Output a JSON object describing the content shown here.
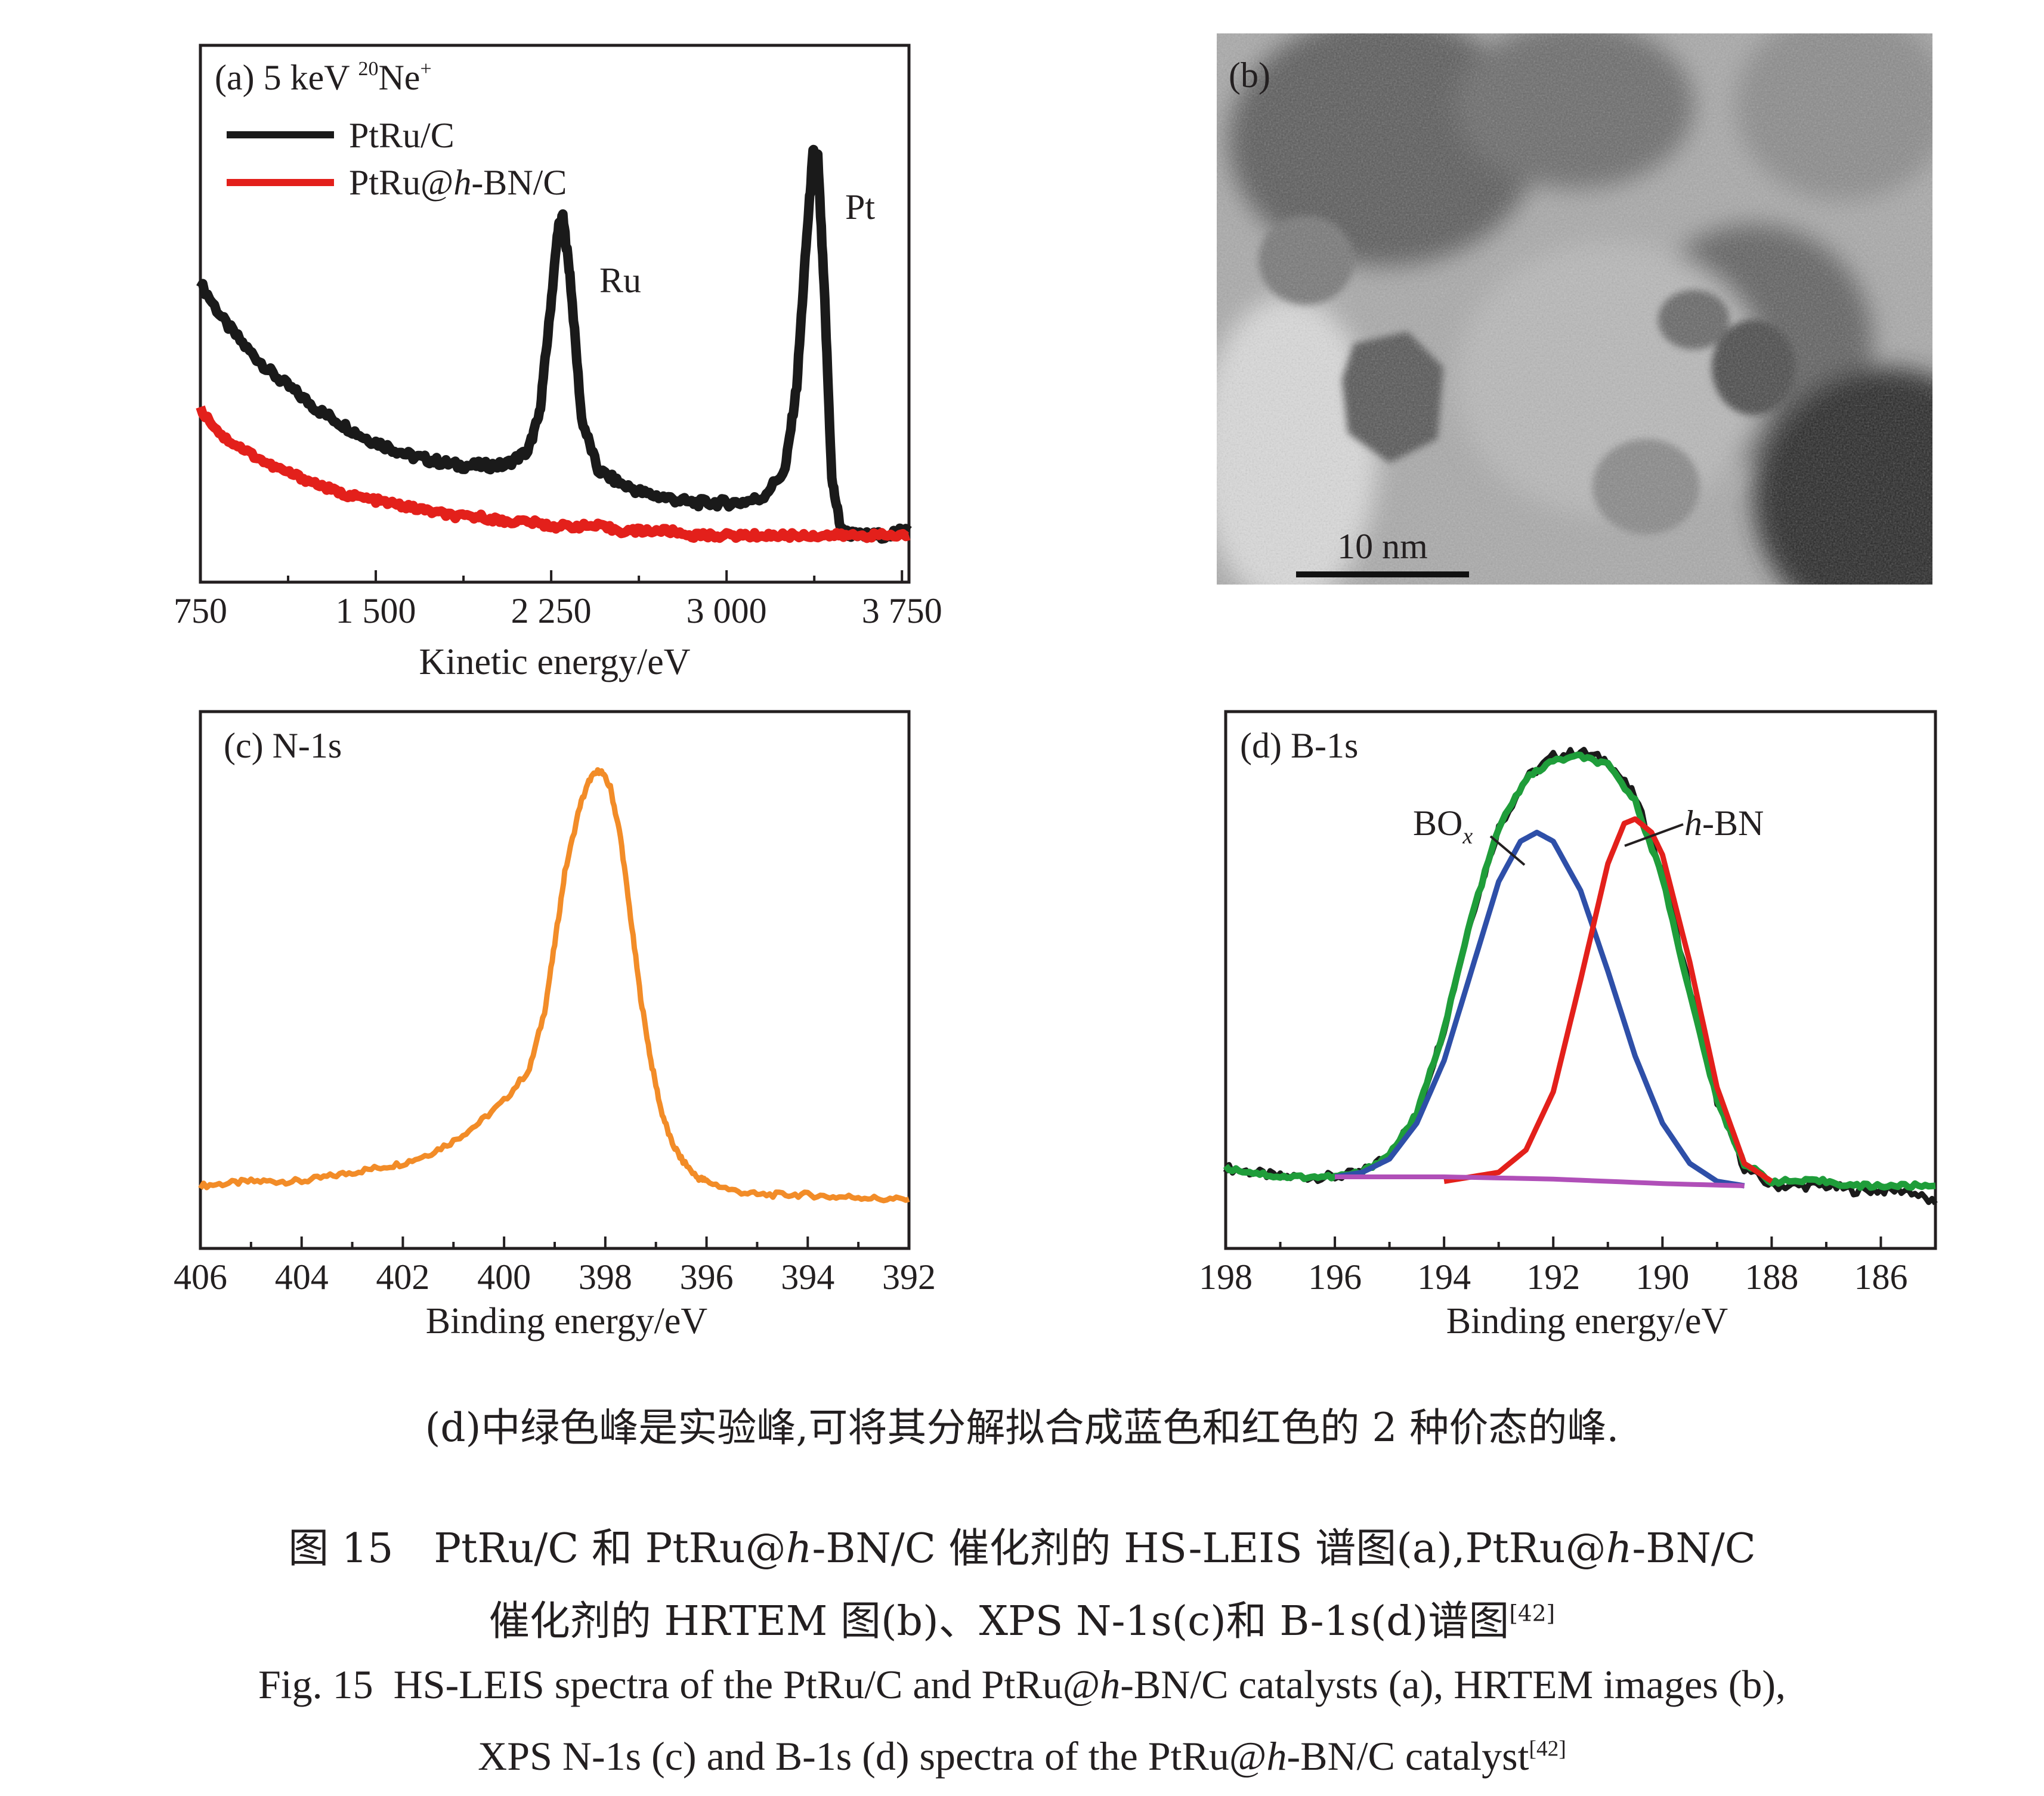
{
  "chart_data": [
    {
      "panel": "a",
      "type": "line",
      "title": "(a) 5 keV ²⁰Ne⁺",
      "xlabel": "Kinetic energy/eV",
      "ylabel": "",
      "xlim": [
        750,
        3780
      ],
      "ylim": [
        0,
        1.15
      ],
      "xticks": [
        750,
        1500,
        2250,
        3000,
        3750
      ],
      "xtick_labels": [
        "750",
        "1 500",
        "2 250",
        "3 000",
        "3 750"
      ],
      "legend": {
        "placement": "top-left"
      },
      "annotations": [
        {
          "text": "Ru",
          "x": 2340,
          "y": 0.68
        },
        {
          "text": "Pt",
          "x": 3380,
          "y": 0.84
        }
      ],
      "series": [
        {
          "name": "PtRu/C",
          "color": "#1a1a1a",
          "x": [
            750,
            850,
            950,
            1050,
            1150,
            1250,
            1350,
            1450,
            1550,
            1650,
            1750,
            1850,
            1950,
            2050,
            2150,
            2200,
            2240,
            2280,
            2300,
            2330,
            2380,
            2450,
            2550,
            2650,
            2750,
            2850,
            2950,
            3050,
            3150,
            3250,
            3300,
            3340,
            3370,
            3390,
            3420,
            3450,
            3490,
            3550,
            3650,
            3780
          ],
          "y": [
            0.64,
            0.56,
            0.5,
            0.45,
            0.41,
            0.37,
            0.34,
            0.31,
            0.29,
            0.27,
            0.26,
            0.25,
            0.25,
            0.25,
            0.28,
            0.36,
            0.55,
            0.76,
            0.78,
            0.66,
            0.35,
            0.24,
            0.21,
            0.19,
            0.18,
            0.17,
            0.17,
            0.17,
            0.18,
            0.24,
            0.42,
            0.72,
            0.92,
            0.91,
            0.6,
            0.22,
            0.11,
            0.1,
            0.1,
            0.11
          ]
        },
        {
          "name": "PtRu@h-BN/C",
          "color": "#e3201b",
          "x": [
            750,
            850,
            950,
            1050,
            1150,
            1250,
            1350,
            1450,
            1550,
            1650,
            1750,
            1850,
            1950,
            2050,
            2150,
            2250,
            2350,
            2450,
            2550,
            2650,
            2750,
            2850,
            2950,
            3050,
            3150,
            3250,
            3350,
            3450,
            3550,
            3650,
            3780
          ],
          "y": [
            0.37,
            0.31,
            0.28,
            0.25,
            0.23,
            0.21,
            0.19,
            0.18,
            0.17,
            0.16,
            0.15,
            0.14,
            0.14,
            0.13,
            0.13,
            0.12,
            0.12,
            0.12,
            0.11,
            0.11,
            0.11,
            0.1,
            0.1,
            0.1,
            0.1,
            0.1,
            0.1,
            0.1,
            0.1,
            0.1,
            0.1
          ]
        }
      ]
    },
    {
      "panel": "b",
      "type": "image",
      "title": "(b)",
      "scale_bar": "10 nm"
    },
    {
      "panel": "c",
      "type": "line",
      "title": "(c) N-1s",
      "xlabel": "Binding energy/eV",
      "ylabel": "",
      "xlim": [
        406,
        392
      ],
      "x_reversed": true,
      "ylim": [
        0,
        1.2
      ],
      "xticks": [
        406,
        404,
        402,
        400,
        398,
        396,
        394,
        392
      ],
      "xtick_labels": [
        "406",
        "404",
        "402",
        "400",
        "398",
        "396",
        "394",
        "392"
      ],
      "series": [
        {
          "name": "",
          "color": "#f28c28",
          "x": [
            406,
            405.5,
            405,
            404.5,
            404,
            403.5,
            403,
            402.5,
            402,
            401.5,
            401,
            400.5,
            400,
            399.5,
            399.2,
            399,
            398.8,
            398.5,
            398.3,
            398.1,
            397.9,
            397.7,
            397.5,
            397.3,
            397.1,
            396.9,
            396.7,
            396.5,
            396.2,
            396,
            395.5,
            395,
            394.5,
            394,
            393.5,
            393,
            392.5,
            392
          ],
          "y": [
            0.14,
            0.145,
            0.15,
            0.15,
            0.15,
            0.16,
            0.17,
            0.18,
            0.19,
            0.21,
            0.24,
            0.28,
            0.33,
            0.4,
            0.53,
            0.68,
            0.84,
            0.99,
            1.05,
            1.07,
            1.03,
            0.92,
            0.74,
            0.56,
            0.42,
            0.31,
            0.24,
            0.2,
            0.16,
            0.15,
            0.13,
            0.12,
            0.12,
            0.12,
            0.115,
            0.115,
            0.11,
            0.11
          ]
        }
      ]
    },
    {
      "panel": "d",
      "type": "line",
      "title": "(d) B-1s",
      "xlabel": "Binding energy/eV",
      "ylabel": "",
      "xlim": [
        198,
        185
      ],
      "x_reversed": true,
      "ylim": [
        0,
        1.2
      ],
      "xticks": [
        198,
        196,
        194,
        192,
        190,
        188,
        186
      ],
      "xtick_labels": [
        "198",
        "196",
        "194",
        "192",
        "190",
        "188",
        "186"
      ],
      "annotations": [
        {
          "text": "BOx",
          "series": "BOx component"
        },
        {
          "text": "h-BN",
          "series": "h-BN component"
        }
      ],
      "series": [
        {
          "name": "",
          "color": "#1a1a1a",
          "x": [
            198,
            197.5,
            197,
            196.5,
            196,
            195.5,
            195,
            194.5,
            194,
            193.5,
            193,
            192.5,
            192,
            191.5,
            191,
            190.5,
            190,
            189.5,
            189,
            188.5,
            188,
            187.5,
            187,
            186.5,
            186,
            185.5,
            185
          ],
          "y": [
            0.18,
            0.17,
            0.16,
            0.16,
            0.16,
            0.17,
            0.21,
            0.3,
            0.49,
            0.74,
            0.94,
            1.05,
            1.1,
            1.11,
            1.09,
            1.01,
            0.84,
            0.58,
            0.33,
            0.18,
            0.14,
            0.14,
            0.14,
            0.13,
            0.13,
            0.13,
            0.1
          ]
        },
        {
          "name": "",
          "color": "#1f9d3a",
          "x": [
            198,
            197.5,
            197,
            196.5,
            196,
            195.5,
            195,
            194.5,
            194,
            193.5,
            193,
            192.5,
            192,
            191.5,
            191,
            190.5,
            190,
            189.5,
            189,
            188.5,
            188,
            187.5,
            187,
            186.5,
            186,
            185.5,
            185
          ],
          "y": [
            0.18,
            0.17,
            0.16,
            0.16,
            0.16,
            0.17,
            0.21,
            0.3,
            0.49,
            0.74,
            0.94,
            1.05,
            1.09,
            1.1,
            1.08,
            1.0,
            0.83,
            0.57,
            0.33,
            0.19,
            0.15,
            0.15,
            0.15,
            0.14,
            0.14,
            0.14,
            0.14
          ]
        },
        {
          "name": "BOx component",
          "color": "#2e4fa8",
          "x": [
            196,
            195.5,
            195,
            194.5,
            194,
            193.5,
            193,
            192.6,
            192.3,
            192,
            191.5,
            191,
            190.5,
            190,
            189.5,
            189,
            188.5
          ],
          "y": [
            0.16,
            0.17,
            0.2,
            0.28,
            0.42,
            0.62,
            0.82,
            0.91,
            0.93,
            0.91,
            0.8,
            0.62,
            0.43,
            0.28,
            0.19,
            0.15,
            0.14
          ]
        },
        {
          "name": "h-BN component",
          "color": "#e3201b",
          "x": [
            194,
            193.5,
            193,
            192.5,
            192,
            191.5,
            191,
            190.7,
            190.5,
            190.2,
            190,
            189.5,
            189,
            188.5,
            188
          ],
          "y": [
            0.15,
            0.16,
            0.17,
            0.22,
            0.35,
            0.6,
            0.86,
            0.95,
            0.96,
            0.93,
            0.88,
            0.64,
            0.36,
            0.19,
            0.15
          ]
        },
        {
          "name": "baseline",
          "color": "#b04fb8",
          "x": [
            196,
            194,
            192,
            190,
            188.5
          ],
          "y": [
            0.16,
            0.16,
            0.155,
            0.145,
            0.14
          ]
        }
      ]
    }
  ],
  "panel_b": {
    "label": "(b)",
    "scale_bar": "10 nm"
  },
  "note": "(d)中绿色峰是实验峰,可将其分解拟合成蓝色和红色的 2 种价态的峰.",
  "caption": {
    "cn_line1_prefix": "图 15　PtRu/C 和 PtRu@",
    "cn_line1_italic": "h",
    "cn_line1_mid": "-BN/C 催化剂的 HS-LEIS 谱图(a),PtRu@",
    "cn_line1_italic2": "h",
    "cn_line1_suffix": "-BN/C",
    "cn_line2": "催化剂的 HRTEM 图(b)、XPS N-1s(c)和 B-1s(d)谱图",
    "cn_ref": "[42]",
    "en_line1_prefix": "Fig. 15 HS-LEIS spectra of the PtRu/C and PtRu@",
    "en_line1_italic": "h",
    "en_line1_suffix": "-BN/C catalysts (a), HRTEM images (b),",
    "en_line2_prefix": "XPS N-1s (c) and B-1s (d) spectra of the PtRu@",
    "en_line2_italic": "h",
    "en_line2_suffix": "-BN/C catalyst",
    "en_ref": "[42]"
  }
}
